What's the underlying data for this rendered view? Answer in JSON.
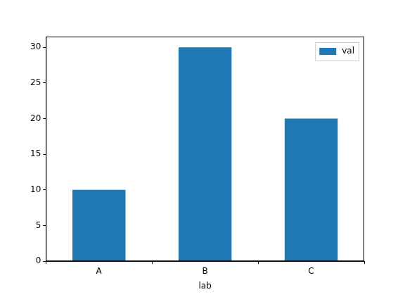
{
  "chart_data": {
    "type": "bar",
    "x_label": "lab",
    "categories": [
      "A",
      "B",
      "C"
    ],
    "series": [
      {
        "name": "val",
        "color": "#1f77b4",
        "values": [
          10,
          30,
          20
        ]
      }
    ],
    "ylim": [
      0,
      31.5
    ],
    "yticks": [
      0,
      5,
      10,
      15,
      20,
      25,
      30
    ],
    "grid": false,
    "legend": "upper right"
  }
}
